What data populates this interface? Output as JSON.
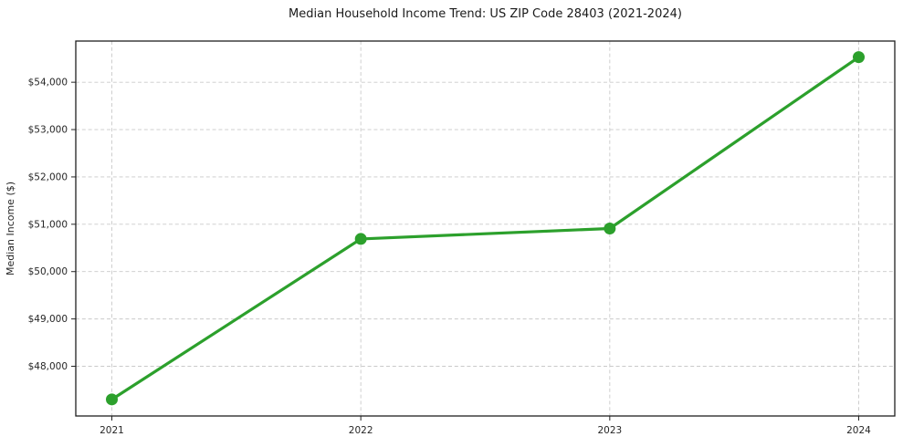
{
  "chart_data": {
    "type": "line",
    "title": "Median Household Income Trend: US ZIP Code 28403 (2021-2024)",
    "xlabel": "",
    "ylabel": "Median Income ($)",
    "categories": [
      "2021",
      "2022",
      "2023",
      "2024"
    ],
    "series": [
      {
        "name": "Median Household Income",
        "values": [
          47300,
          50690,
          50910,
          54530
        ],
        "color": "#2ca02c"
      }
    ],
    "ylim": [
      46950,
      54870
    ],
    "yticks": [
      48000,
      49000,
      50000,
      51000,
      52000,
      53000,
      54000
    ],
    "ytick_labels": [
      "$48,000",
      "$49,000",
      "$50,000",
      "$51,000",
      "$52,000",
      "$53,000",
      "$54,000"
    ],
    "grid": true,
    "grid_style": "dashed",
    "grid_color": "#c9c9c9",
    "legend_position": "none",
    "line_width": 3.2,
    "marker": "circle",
    "marker_radius": 6.5,
    "text_color": "#262626",
    "background_color": "#ffffff"
  }
}
